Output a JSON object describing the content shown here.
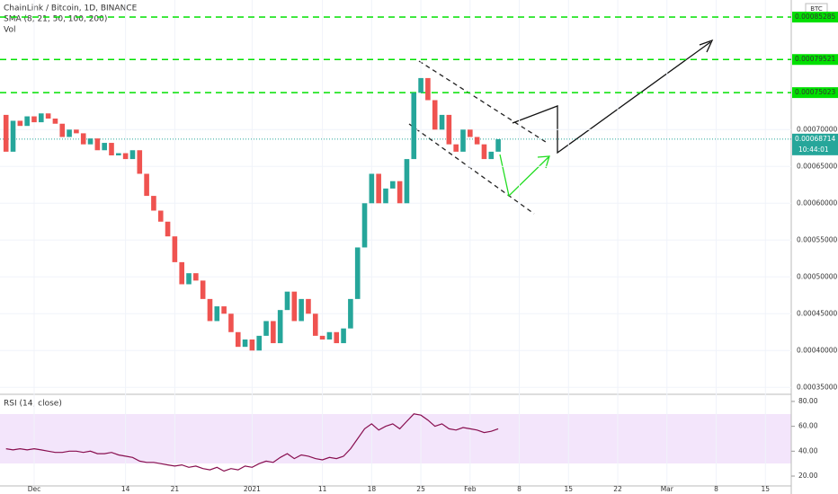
{
  "chart_data": {
    "type": "candlestick",
    "title": "ChainLink / Bitcoin, 1D, BINANCE",
    "indicator": "SMA (8, 21, 50, 100, 200)",
    "volume_label": "Vol",
    "currency": "BTC",
    "up_color": "#26a69a",
    "down_color": "#ef5350",
    "open": [
      0.00072,
      0.00067,
      0.000712,
      0.000705,
      0.000718,
      0.00071,
      0.000722,
      0.000715,
      0.000708,
      0.00069,
      0.0007,
      0.000695,
      0.00068,
      0.000688,
      0.000672,
      0.000682,
      0.000665,
      0.000668,
      0.00066,
      0.000672,
      0.00064,
      0.00061,
      0.00059,
      0.000575,
      0.000555,
      0.00052,
      0.00049,
      0.000505,
      0.000495,
      0.00047,
      0.00044,
      0.00046,
      0.00045,
      0.000425,
      0.000405,
      0.000415,
      0.0004,
      0.00042,
      0.00044,
      0.00041,
      0.000455,
      0.00048,
      0.00044,
      0.00047,
      0.00045,
      0.00042,
      0.000415,
      0.000425,
      0.00041,
      0.00043,
      0.00047,
      0.00054,
      0.0006,
      0.00064,
      0.0006,
      0.00062,
      0.00063,
      0.0006,
      0.00066,
      0.00075,
      0.00077,
      0.00074,
      0.0007,
      0.00072,
      0.00068,
      0.00067,
      0.0007,
      0.00069,
      0.00068,
      0.00066,
      0.00067
    ],
    "close": [
      0.00067,
      0.000712,
      0.000705,
      0.000718,
      0.00071,
      0.000722,
      0.000715,
      0.000708,
      0.00069,
      0.0007,
      0.000695,
      0.00068,
      0.000688,
      0.000672,
      0.000682,
      0.000665,
      0.000668,
      0.00066,
      0.000672,
      0.00064,
      0.00061,
      0.00059,
      0.000575,
      0.000555,
      0.00052,
      0.00049,
      0.000505,
      0.000495,
      0.00047,
      0.00044,
      0.00046,
      0.00045,
      0.000425,
      0.000405,
      0.000415,
      0.0004,
      0.00042,
      0.00044,
      0.00041,
      0.000455,
      0.00048,
      0.00044,
      0.00047,
      0.00045,
      0.00042,
      0.000415,
      0.000425,
      0.00041,
      0.00043,
      0.00047,
      0.00054,
      0.0006,
      0.00064,
      0.0006,
      0.00062,
      0.00063,
      0.0006,
      0.00066,
      0.00075,
      0.00077,
      0.00074,
      0.0007,
      0.00072,
      0.00068,
      0.00067,
      0.0007,
      0.00069,
      0.00068,
      0.00066,
      0.00067,
      0.000687
    ],
    "ylim": [
      0.000343,
      0.000876
    ],
    "yticks": [
      {
        "value": 0.00035,
        "label": "0.00035000"
      },
      {
        "value": 0.0004,
        "label": "0.00040000"
      },
      {
        "value": 0.00045,
        "label": "0.00045000"
      },
      {
        "value": 0.0005,
        "label": "0.00050000"
      },
      {
        "value": 0.00055,
        "label": "0.00055000"
      },
      {
        "value": 0.0006,
        "label": "0.00060000"
      },
      {
        "value": 0.00065,
        "label": "0.00065000"
      },
      {
        "value": 0.0007,
        "label": "0.00070000"
      }
    ],
    "levels": [
      0.00085285,
      0.00079521,
      0.00075023
    ],
    "last_price": 0.00068714,
    "countdown": "10:44:01",
    "xticks": [
      {
        "value": 4,
        "label": "Dec"
      },
      {
        "value": 17,
        "label": "14"
      },
      {
        "value": 24,
        "label": "21"
      },
      {
        "value": 35,
        "label": "2021"
      },
      {
        "value": 45,
        "label": "11"
      },
      {
        "value": 52,
        "label": "18"
      },
      {
        "value": 59,
        "label": "25"
      },
      {
        "value": 66,
        "label": "Feb"
      },
      {
        "value": 73,
        "label": "8"
      },
      {
        "value": 80,
        "label": "15"
      },
      {
        "value": 87,
        "label": "22"
      },
      {
        "value": 94,
        "label": "Mar"
      },
      {
        "value": 101,
        "label": "8"
      },
      {
        "value": 108,
        "label": "15"
      }
    ],
    "rsi": {
      "name": "RSI (14, close)",
      "color": "#880e4f",
      "ylim": [
        12.8,
        85
      ],
      "yticks": [
        {
          "value": 80,
          "label": "80.00"
        },
        {
          "value": 60,
          "label": "60.00"
        },
        {
          "value": 40,
          "label": "40.00"
        },
        {
          "value": 20,
          "label": "20.00"
        }
      ],
      "values": [
        42,
        41,
        42,
        41,
        42,
        41,
        40,
        39,
        39,
        40,
        40,
        39,
        40,
        38,
        38,
        39,
        37,
        36,
        35,
        32,
        31,
        31,
        30,
        29,
        28,
        29,
        27,
        28,
        26,
        25,
        27,
        24,
        26,
        25,
        28,
        27,
        30,
        32,
        31,
        35,
        38,
        34,
        37,
        36,
        34,
        33,
        35,
        34,
        36,
        42,
        50,
        58,
        62,
        57,
        60,
        62,
        58,
        64,
        70,
        69,
        65,
        60,
        62,
        58,
        57,
        59,
        58,
        57,
        55,
        56,
        58
      ]
    }
  }
}
